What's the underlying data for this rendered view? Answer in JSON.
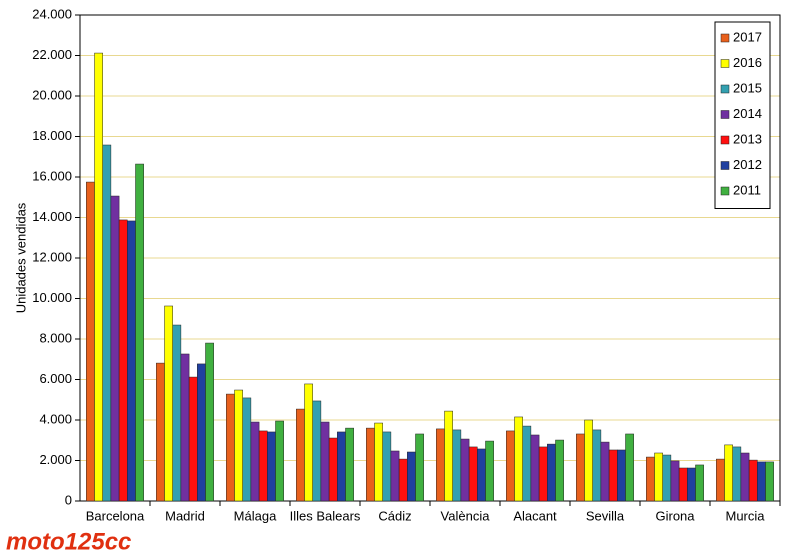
{
  "chart_data": {
    "type": "bar",
    "y_label": "Unidades vendidas",
    "watermark": "moto125cc",
    "categories": [
      "Barcelona",
      "Madrid",
      "Málaga",
      "Illes Balears",
      "Cádiz",
      "València",
      "Alacant",
      "Sevilla",
      "Girona",
      "Murcia"
    ],
    "series": [
      {
        "name": "2017",
        "color": "#e8601c",
        "values": [
          15750,
          6810,
          5280,
          4540,
          3600,
          3560,
          3460,
          3310,
          2170,
          2070
        ]
      },
      {
        "name": "2016",
        "color": "#ffff00",
        "values": [
          22120,
          9630,
          5480,
          5780,
          3850,
          4440,
          4150,
          4000,
          2370,
          2770
        ]
      },
      {
        "name": "2015",
        "color": "#33a0b0",
        "values": [
          17580,
          8690,
          5090,
          4940,
          3410,
          3510,
          3700,
          3510,
          2270,
          2670
        ]
      },
      {
        "name": "2014",
        "color": "#7030a0",
        "values": [
          15060,
          7260,
          3900,
          3900,
          2470,
          3060,
          3260,
          2910,
          1980,
          2370
        ]
      },
      {
        "name": "2013",
        "color": "#ff1010",
        "values": [
          13880,
          6120,
          3460,
          3110,
          2070,
          2670,
          2670,
          2520,
          1630,
          2020
        ]
      },
      {
        "name": "2012",
        "color": "#2040a0",
        "values": [
          13830,
          6770,
          3410,
          3410,
          2420,
          2570,
          2810,
          2520,
          1630,
          1930
        ]
      },
      {
        "name": "2011",
        "color": "#40b040",
        "values": [
          16640,
          7800,
          3950,
          3600,
          3310,
          2960,
          3010,
          3310,
          1780,
          1930
        ]
      }
    ],
    "ylim": [
      0,
      24000
    ],
    "yticks": [
      0,
      {
        "value": 2000,
        "label": "2.000"
      },
      {
        "value": 4000,
        "label": "4.000"
      },
      {
        "value": 6000,
        "label": "6.000"
      },
      {
        "value": 8000,
        "label": "8.000"
      },
      {
        "value": 10000,
        "label": "10.000"
      },
      {
        "value": 12000,
        "label": "12.000"
      },
      {
        "value": 14000,
        "label": "14.000"
      },
      {
        "value": 16000,
        "label": "16.000"
      },
      {
        "value": 18000,
        "label": "18.000"
      },
      {
        "value": 20000,
        "label": "20.000"
      },
      {
        "value": 22000,
        "label": "22.000"
      },
      {
        "value": 24000,
        "label": "24.000"
      }
    ],
    "grid": true,
    "legend": "top-right"
  }
}
